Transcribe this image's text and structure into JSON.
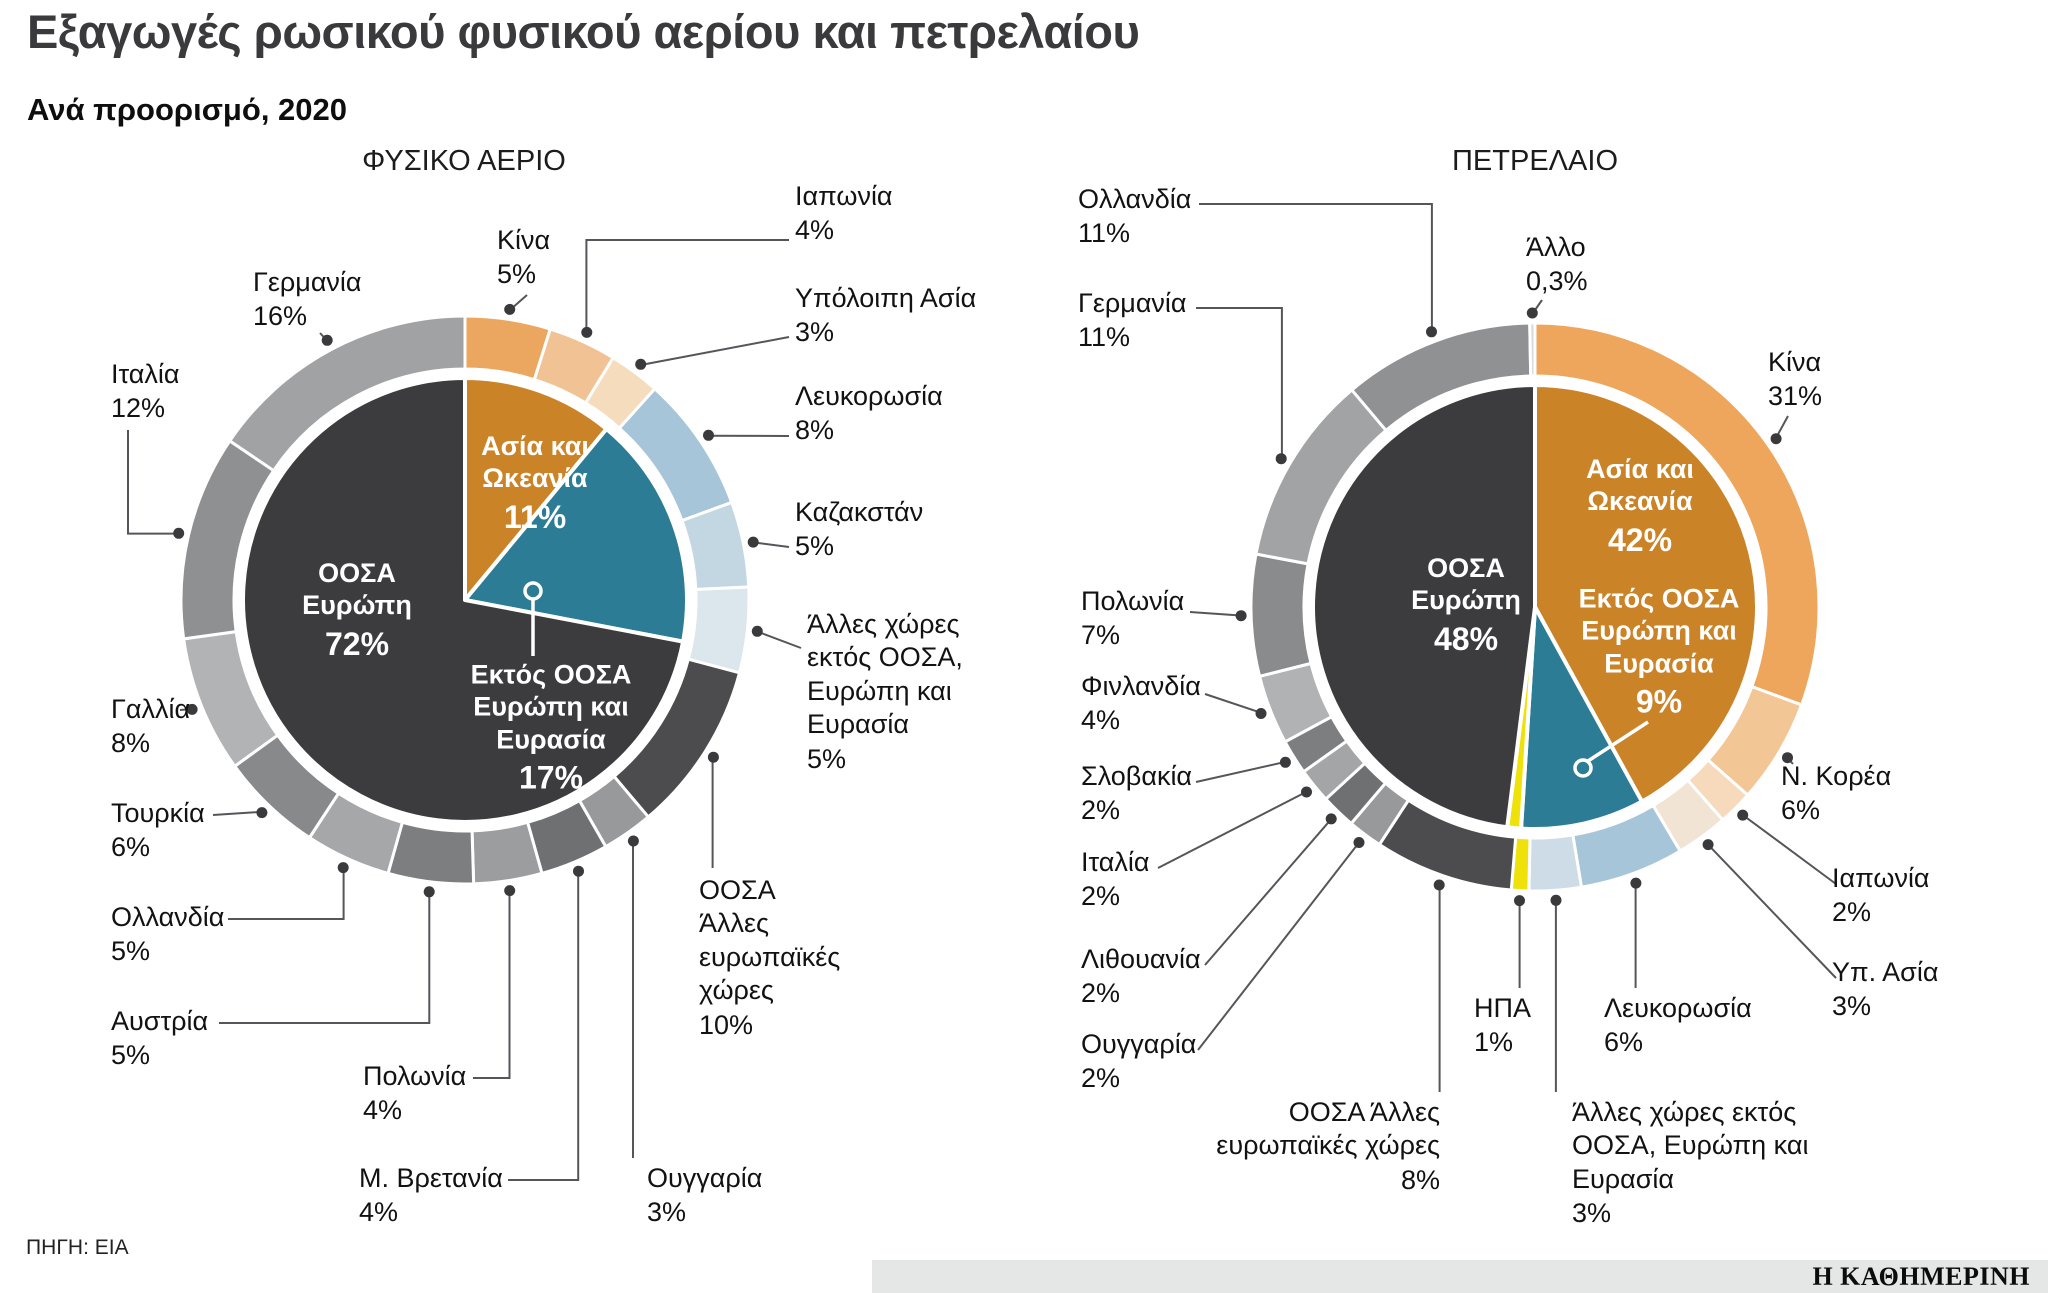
{
  "title": "Εξαγωγές ρωσικού φυσικού αερίου και πετρελαίου",
  "subtitle": "Ανά προορισμό, 2020",
  "source": "ΠΗΓΗ: ΕΙΑ",
  "brand": "Η ΚΑΘΗΜΕΡΙΝΗ",
  "colors": {
    "oecd_europe": "#3c3c3e",
    "asia_oceania": "#cb8328",
    "non_oecd_eurasia": "#2c7c95",
    "usa": "#efe20b"
  },
  "chart_data": [
    {
      "type": "donut",
      "title": "ΦΥΣΙΚΟ ΑΕΡΙΟ",
      "inner": [
        {
          "label": "Ασία και Ωκεανία",
          "pct": "11%",
          "value": 11,
          "color": "#cb8328"
        },
        {
          "label": "Εκτός ΟΟΣΑ Ευρώπη και Ευρασία",
          "pct": "17%",
          "value": 17,
          "color": "#2c7c95"
        },
        {
          "label": "ΟΟΣΑ Ευρώπη",
          "pct": "72%",
          "value": 72,
          "color": "#3c3c3e"
        }
      ],
      "ring": [
        {
          "label": "Κίνα",
          "pct": "5%",
          "value": 5,
          "color": "#eba75f"
        },
        {
          "label": "Ιαπωνία",
          "pct": "4%",
          "value": 4,
          "color": "#f1c394"
        },
        {
          "label": "Υπόλοιπη Ασία",
          "pct": "3%",
          "value": 3,
          "color": "#f5dcbd"
        },
        {
          "label": "Λευκορωσία",
          "pct": "8%",
          "value": 8,
          "color": "#a6c5d8"
        },
        {
          "label": "Καζακστάν",
          "pct": "5%",
          "value": 5,
          "color": "#c3d7e2"
        },
        {
          "label": "Άλλες χώρες εκτός ΟΟΣΑ, Ευρώπη και Ευρασία",
          "pct": "5%",
          "value": 5,
          "color": "#dce7ed"
        },
        {
          "label": "ΟΟΣΑ Άλλες ευρωπαϊκές χώρες",
          "pct": "10%",
          "value": 10,
          "color": "#4c4c4e"
        },
        {
          "label": "Ουγγαρία",
          "pct": "3%",
          "value": 3,
          "color": "#98999b"
        },
        {
          "label": "Μ. Βρετανία",
          "pct": "4%",
          "value": 4,
          "color": "#6f7072"
        },
        {
          "label": "Πολωνία",
          "pct": "4%",
          "value": 4,
          "color": "#9c9d9f"
        },
        {
          "label": "Αυστρία",
          "pct": "5%",
          "value": 5,
          "color": "#7d7e80"
        },
        {
          "label": "Ολλανδία",
          "pct": "5%",
          "value": 5,
          "color": "#a6a7a9"
        },
        {
          "label": "Τουρκία",
          "pct": "6%",
          "value": 6,
          "color": "#88898b"
        },
        {
          "label": "Γαλλία",
          "pct": "8%",
          "value": 8,
          "color": "#b2b3b5"
        },
        {
          "label": "Ιταλία",
          "pct": "12%",
          "value": 12,
          "color": "#8f9092"
        },
        {
          "label": "Γερμανία",
          "pct": "16%",
          "value": 16,
          "color": "#a1a2a4"
        }
      ]
    },
    {
      "type": "donut",
      "title": "ΠΕΤΡΕΛΑΙΟ",
      "inner": [
        {
          "label": "Ασία και Ωκεανία",
          "pct": "42%",
          "value": 42,
          "color": "#cb8328"
        },
        {
          "label": "Εκτός ΟΟΣΑ Ευρώπη και Ευρασία",
          "pct": "9%",
          "value": 9,
          "color": "#2c7c95"
        },
        {
          "label": "ΗΠΑ",
          "pct": "1%",
          "value": 1,
          "color": "#efe20b"
        },
        {
          "label": "ΟΟΣΑ Ευρώπη",
          "pct": "48%",
          "value": 48,
          "color": "#3c3c3e"
        }
      ],
      "ring": [
        {
          "label": "Κίνα",
          "pct": "31%",
          "value": 31,
          "color": "#eea55c"
        },
        {
          "label": "Ν. Κορέα",
          "pct": "6%",
          "value": 6,
          "color": "#f3c795"
        },
        {
          "label": "Ιαπωνία",
          "pct": "2%",
          "value": 2,
          "color": "#f6dabb"
        },
        {
          "label": "Υπ. Ασία",
          "pct": "3%",
          "value": 3,
          "color": "#f2e4d5"
        },
        {
          "label": "Λευκορωσία",
          "pct": "6%",
          "value": 6,
          "color": "#a6c5d8"
        },
        {
          "label": "Άλλες χώρες εκτός ΟΟΣΑ, Ευρώπη και Ευρασία",
          "pct": "3%",
          "value": 3,
          "color": "#cddce6"
        },
        {
          "label": "ΗΠΑ",
          "pct": "1%",
          "value": 1,
          "color": "#efe20b"
        },
        {
          "label": "ΟΟΣΑ Άλλες ευρωπαϊκές χώρες",
          "pct": "8%",
          "value": 8,
          "color": "#4c4c4e"
        },
        {
          "label": "Ουγγαρία",
          "pct": "2%",
          "value": 2,
          "color": "#98999b"
        },
        {
          "label": "Λιθουανία",
          "pct": "2%",
          "value": 2,
          "color": "#6f7072"
        },
        {
          "label": "Ιταλία",
          "pct": "2%",
          "value": 2,
          "color": "#a4a5a7"
        },
        {
          "label": "Σλοβακία",
          "pct": "2%",
          "value": 2,
          "color": "#7d7e80"
        },
        {
          "label": "Φινλανδία",
          "pct": "4%",
          "value": 4,
          "color": "#b1b2b4"
        },
        {
          "label": "Πολωνία",
          "pct": "7%",
          "value": 7,
          "color": "#8a8b8d"
        },
        {
          "label": "Γερμανία",
          "pct": "11%",
          "value": 11,
          "color": "#a2a3a5"
        },
        {
          "label": "Ολλανδία",
          "pct": "11%",
          "value": 11,
          "color": "#909193"
        },
        {
          "label": "Άλλο",
          "pct": "0,3%",
          "value": 0.3,
          "color": "#d9dadb"
        }
      ]
    }
  ]
}
